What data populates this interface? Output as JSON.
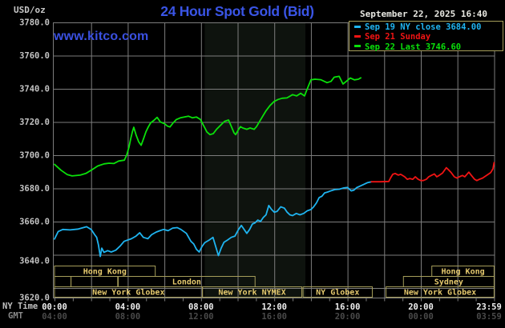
{
  "header": {
    "units_label": "USD/oz",
    "title": "24 Hour Spot Gold (Bid)",
    "datetime": "September 22, 2025 16:40",
    "watermark": "www.kitco.com"
  },
  "legend": {
    "entries": [
      {
        "id": "sep19",
        "label": "Sep 19 NY close 3684.00",
        "color": "#1fb4f0"
      },
      {
        "id": "sep21",
        "label": "Sep 21 Sunday",
        "color": "#f01414"
      },
      {
        "id": "sep22",
        "label": "Sep 22 Last 3746.60",
        "color": "#0ae00a"
      }
    ]
  },
  "axes": {
    "ny_time_label": "NY Time",
    "gmt_label": "GMT",
    "y_ticks": [
      {
        "value": 3780,
        "label": "3780.0"
      },
      {
        "value": 3760,
        "label": "3760.0"
      },
      {
        "value": 3740,
        "label": "3740.0"
      },
      {
        "value": 3720,
        "label": "3720.0"
      },
      {
        "value": 3700,
        "label": "3700.0"
      },
      {
        "value": 3680,
        "label": "3680.0"
      },
      {
        "value": 3660,
        "label": "3660.0"
      },
      {
        "value": 3640,
        "label": "3640.0"
      },
      {
        "value": 3620,
        "label": "3620.0"
      }
    ],
    "x_ticks": [
      {
        "h": 0,
        "ny": "00:00",
        "gmt": "04:00"
      },
      {
        "h": 4,
        "ny": "04:00",
        "gmt": "08:00"
      },
      {
        "h": 8,
        "ny": "08:00",
        "gmt": "12:00"
      },
      {
        "h": 12,
        "ny": "12:00",
        "gmt": "16:00"
      },
      {
        "h": 16,
        "ny": "16:00",
        "gmt": "20:00"
      },
      {
        "h": 20,
        "ny": "20:00",
        "gmt": "00:00"
      },
      {
        "h": 23.983,
        "ny": "23:59",
        "gmt": "03:59"
      }
    ]
  },
  "colors": {
    "background": "#000000",
    "grid": "#7d7d7d",
    "shaded_band": "#0e130e",
    "y_label_text": "#c4c4c4",
    "x_label_text": "#f0f0f0",
    "gmt_tick_text": "#4a4a4a",
    "session_border": "#a59d5a",
    "session_text": "#e6ca6e",
    "title_blue": "#3a55e6",
    "watermark_blue": "#3a50e0"
  },
  "chart_data": {
    "type": "line",
    "title": "24 Hour Spot Gold (Bid)",
    "x_unit": "NY time, hours 0-24",
    "xlim_hours": [
      0,
      24
    ],
    "ylim": [
      3620,
      3780
    ],
    "y_tick_step": 20,
    "x_gridline_step_hours": 2,
    "grid": true,
    "legend_position": "top-right",
    "shaded_band_hours": [
      8.2,
      13.7
    ],
    "series": [
      {
        "name": "Sep 19 NY close 3684.00",
        "color": "#1fb4f0",
        "points": [
          [
            0.0,
            3649.5
          ],
          [
            0.2,
            3654.0
          ],
          [
            0.45,
            3655.3
          ],
          [
            0.85,
            3655.0
          ],
          [
            1.3,
            3655.5
          ],
          [
            1.75,
            3656.9
          ],
          [
            2.0,
            3655.3
          ],
          [
            2.2,
            3652.0
          ],
          [
            2.3,
            3650.5
          ],
          [
            2.4,
            3646.0
          ],
          [
            2.5,
            3639.0
          ],
          [
            2.58,
            3644.0
          ],
          [
            2.7,
            3641.5
          ],
          [
            2.9,
            3642.5
          ],
          [
            3.1,
            3641.7
          ],
          [
            3.35,
            3642.8
          ],
          [
            3.6,
            3645.5
          ],
          [
            3.8,
            3648.1
          ],
          [
            4.0,
            3648.9
          ],
          [
            4.2,
            3649.7
          ],
          [
            4.45,
            3651.3
          ],
          [
            4.65,
            3653.3
          ],
          [
            4.85,
            3650.5
          ],
          [
            5.1,
            3649.7
          ],
          [
            5.3,
            3652.1
          ],
          [
            5.55,
            3653.7
          ],
          [
            5.75,
            3654.5
          ],
          [
            5.95,
            3655.3
          ],
          [
            6.2,
            3654.5
          ],
          [
            6.45,
            3656.1
          ],
          [
            6.7,
            3656.4
          ],
          [
            6.9,
            3655.3
          ],
          [
            7.2,
            3652.9
          ],
          [
            7.45,
            3648.1
          ],
          [
            7.6,
            3646.5
          ],
          [
            7.75,
            3643.3
          ],
          [
            7.9,
            3641.7
          ],
          [
            8.05,
            3644.9
          ],
          [
            8.2,
            3647.3
          ],
          [
            8.45,
            3648.9
          ],
          [
            8.65,
            3650.5
          ],
          [
            8.8,
            3645.0
          ],
          [
            8.95,
            3639.5
          ],
          [
            9.1,
            3644.0
          ],
          [
            9.25,
            3647.5
          ],
          [
            9.45,
            3648.9
          ],
          [
            9.65,
            3650.5
          ],
          [
            9.85,
            3651.3
          ],
          [
            10.05,
            3655.3
          ],
          [
            10.2,
            3657.7
          ],
          [
            10.35,
            3655.3
          ],
          [
            10.5,
            3652.9
          ],
          [
            10.65,
            3655.3
          ],
          [
            10.8,
            3658.5
          ],
          [
            10.95,
            3659.3
          ],
          [
            11.1,
            3660.9
          ],
          [
            11.25,
            3660.1
          ],
          [
            11.4,
            3662.5
          ],
          [
            11.55,
            3664.1
          ],
          [
            11.7,
            3669.7
          ],
          [
            11.85,
            3667.3
          ],
          [
            12.0,
            3665.7
          ],
          [
            12.15,
            3666.1
          ],
          [
            12.35,
            3668.9
          ],
          [
            12.55,
            3668.1
          ],
          [
            12.7,
            3665.7
          ],
          [
            12.85,
            3664.1
          ],
          [
            13.0,
            3663.6
          ],
          [
            13.2,
            3664.9
          ],
          [
            13.4,
            3664.1
          ],
          [
            13.6,
            3664.9
          ],
          [
            13.8,
            3666.5
          ],
          [
            14.0,
            3667.3
          ],
          [
            14.15,
            3668.9
          ],
          [
            14.3,
            3671.3
          ],
          [
            14.45,
            3674.5
          ],
          [
            14.6,
            3675.3
          ],
          [
            14.75,
            3677.3
          ],
          [
            14.9,
            3677.8
          ],
          [
            15.05,
            3678.4
          ],
          [
            15.3,
            3679.3
          ],
          [
            15.55,
            3679.5
          ],
          [
            15.8,
            3680.3
          ],
          [
            16.0,
            3680.6
          ],
          [
            16.2,
            3678.5
          ],
          [
            16.35,
            3679.0
          ],
          [
            16.5,
            3680.5
          ],
          [
            16.7,
            3681.5
          ],
          [
            16.9,
            3682.5
          ],
          [
            17.1,
            3683.5
          ],
          [
            17.3,
            3684.0
          ]
        ]
      },
      {
        "name": "Sep 21 Sunday",
        "color": "#f01414",
        "points": [
          [
            17.3,
            3684.0
          ],
          [
            17.8,
            3684.0
          ],
          [
            18.25,
            3684.2
          ],
          [
            18.34,
            3686.2
          ],
          [
            18.47,
            3688.5
          ],
          [
            18.6,
            3689.0
          ],
          [
            18.77,
            3688.0
          ],
          [
            18.9,
            3688.5
          ],
          [
            19.12,
            3687.0
          ],
          [
            19.26,
            3685.5
          ],
          [
            19.4,
            3686.0
          ],
          [
            19.56,
            3685.5
          ],
          [
            19.7,
            3687.0
          ],
          [
            19.85,
            3685.5
          ],
          [
            20.0,
            3684.7
          ],
          [
            20.13,
            3684.7
          ],
          [
            20.3,
            3685.5
          ],
          [
            20.43,
            3687.0
          ],
          [
            20.57,
            3687.8
          ],
          [
            20.74,
            3688.7
          ],
          [
            20.87,
            3687.0
          ],
          [
            21.0,
            3687.8
          ],
          [
            21.18,
            3689.2
          ],
          [
            21.39,
            3692.5
          ],
          [
            21.53,
            3691.0
          ],
          [
            21.66,
            3689.5
          ],
          [
            21.83,
            3687.0
          ],
          [
            21.97,
            3686.2
          ],
          [
            22.1,
            3687.0
          ],
          [
            22.27,
            3687.8
          ],
          [
            22.4,
            3687.0
          ],
          [
            22.62,
            3689.8
          ],
          [
            22.76,
            3687.8
          ],
          [
            22.93,
            3685.5
          ],
          [
            23.06,
            3684.7
          ],
          [
            23.2,
            3685.5
          ],
          [
            23.37,
            3686.2
          ],
          [
            23.59,
            3687.8
          ],
          [
            23.81,
            3689.5
          ],
          [
            23.94,
            3691.8
          ],
          [
            24.0,
            3695.5
          ]
        ]
      },
      {
        "name": "Sep 22 Last 3746.60",
        "color": "#0ae00a",
        "points": [
          [
            0.0,
            3694.5
          ],
          [
            0.35,
            3691.0
          ],
          [
            0.7,
            3688.3
          ],
          [
            0.96,
            3687.5
          ],
          [
            1.4,
            3688.0
          ],
          [
            1.71,
            3689.0
          ],
          [
            2.01,
            3691.0
          ],
          [
            2.36,
            3693.5
          ],
          [
            2.71,
            3694.8
          ],
          [
            2.98,
            3695.2
          ],
          [
            3.24,
            3695.0
          ],
          [
            3.5,
            3696.5
          ],
          [
            3.81,
            3697.0
          ],
          [
            3.94,
            3700.0
          ],
          [
            4.07,
            3705.0
          ],
          [
            4.16,
            3710.0
          ],
          [
            4.25,
            3714.0
          ],
          [
            4.33,
            3716.8
          ],
          [
            4.46,
            3712.0
          ],
          [
            4.6,
            3708.0
          ],
          [
            4.73,
            3706.0
          ],
          [
            4.86,
            3710.0
          ],
          [
            4.99,
            3714.0
          ],
          [
            5.12,
            3717.0
          ],
          [
            5.25,
            3719.5
          ],
          [
            5.43,
            3721.0
          ],
          [
            5.6,
            3722.8
          ],
          [
            5.78,
            3720.0
          ],
          [
            6.0,
            3719.0
          ],
          [
            6.17,
            3717.5
          ],
          [
            6.3,
            3717.0
          ],
          [
            6.48,
            3719.5
          ],
          [
            6.65,
            3721.5
          ],
          [
            6.87,
            3722.5
          ],
          [
            7.09,
            3723.0
          ],
          [
            7.31,
            3723.5
          ],
          [
            7.53,
            3722.5
          ],
          [
            7.75,
            3723.0
          ],
          [
            7.97,
            3721.5
          ],
          [
            8.32,
            3714.0
          ],
          [
            8.49,
            3712.4
          ],
          [
            8.67,
            3713.0
          ],
          [
            8.84,
            3715.5
          ],
          [
            9.06,
            3718.0
          ],
          [
            9.28,
            3720.4
          ],
          [
            9.5,
            3721.2
          ],
          [
            9.63,
            3718.0
          ],
          [
            9.8,
            3713.5
          ],
          [
            9.89,
            3712.4
          ],
          [
            10.02,
            3715.0
          ],
          [
            10.15,
            3717.2
          ],
          [
            10.28,
            3716.4
          ],
          [
            10.5,
            3715.6
          ],
          [
            10.68,
            3716.4
          ],
          [
            10.9,
            3715.6
          ],
          [
            11.03,
            3717.2
          ],
          [
            11.33,
            3722.8
          ],
          [
            11.55,
            3726.8
          ],
          [
            11.77,
            3730.0
          ],
          [
            11.99,
            3732.4
          ],
          [
            12.21,
            3733.6
          ],
          [
            12.43,
            3734.3
          ],
          [
            12.69,
            3734.5
          ],
          [
            13.0,
            3736.5
          ],
          [
            13.22,
            3735.7
          ],
          [
            13.44,
            3737.3
          ],
          [
            13.65,
            3735.7
          ],
          [
            13.79,
            3739.7
          ],
          [
            14.0,
            3745.4
          ],
          [
            14.22,
            3745.8
          ],
          [
            14.53,
            3745.5
          ],
          [
            14.88,
            3743.7
          ],
          [
            15.1,
            3744.5
          ],
          [
            15.27,
            3747.0
          ],
          [
            15.54,
            3747.5
          ],
          [
            15.75,
            3742.9
          ],
          [
            15.93,
            3744.5
          ],
          [
            16.15,
            3746.5
          ],
          [
            16.37,
            3745.4
          ],
          [
            16.59,
            3745.8
          ],
          [
            16.72,
            3746.6
          ]
        ]
      }
    ],
    "sessions": {
      "boxes": [
        {
          "row": 0,
          "label": "Hong Kong",
          "start_h": 0,
          "end_h": 5.5
        },
        {
          "row": 0,
          "label": "Hong Kong",
          "start_h": 20.6,
          "end_h": 24
        },
        {
          "row": 1,
          "label": "",
          "start_h": 0,
          "end_h": 0.9
        },
        {
          "row": 1,
          "label": "",
          "start_h": 0.9,
          "end_h": 3.45
        },
        {
          "row": 1,
          "label": "London",
          "start_h": 3.48,
          "end_h": 10.95
        },
        {
          "row": 1,
          "label": "Sydney",
          "start_h": 19.05,
          "end_h": 24
        },
        {
          "row": 2,
          "label": "New York Globex",
          "start_h": 0,
          "end_h": 8.08
        },
        {
          "row": 2,
          "label": "New York NYMEX",
          "start_h": 8.08,
          "end_h": 13.5
        },
        {
          "row": 2,
          "label": "NY Globex",
          "start_h": 13.57,
          "end_h": 17.35
        },
        {
          "row": 2,
          "label": "New York Globex",
          "start_h": 18.1,
          "end_h": 24
        }
      ]
    }
  }
}
